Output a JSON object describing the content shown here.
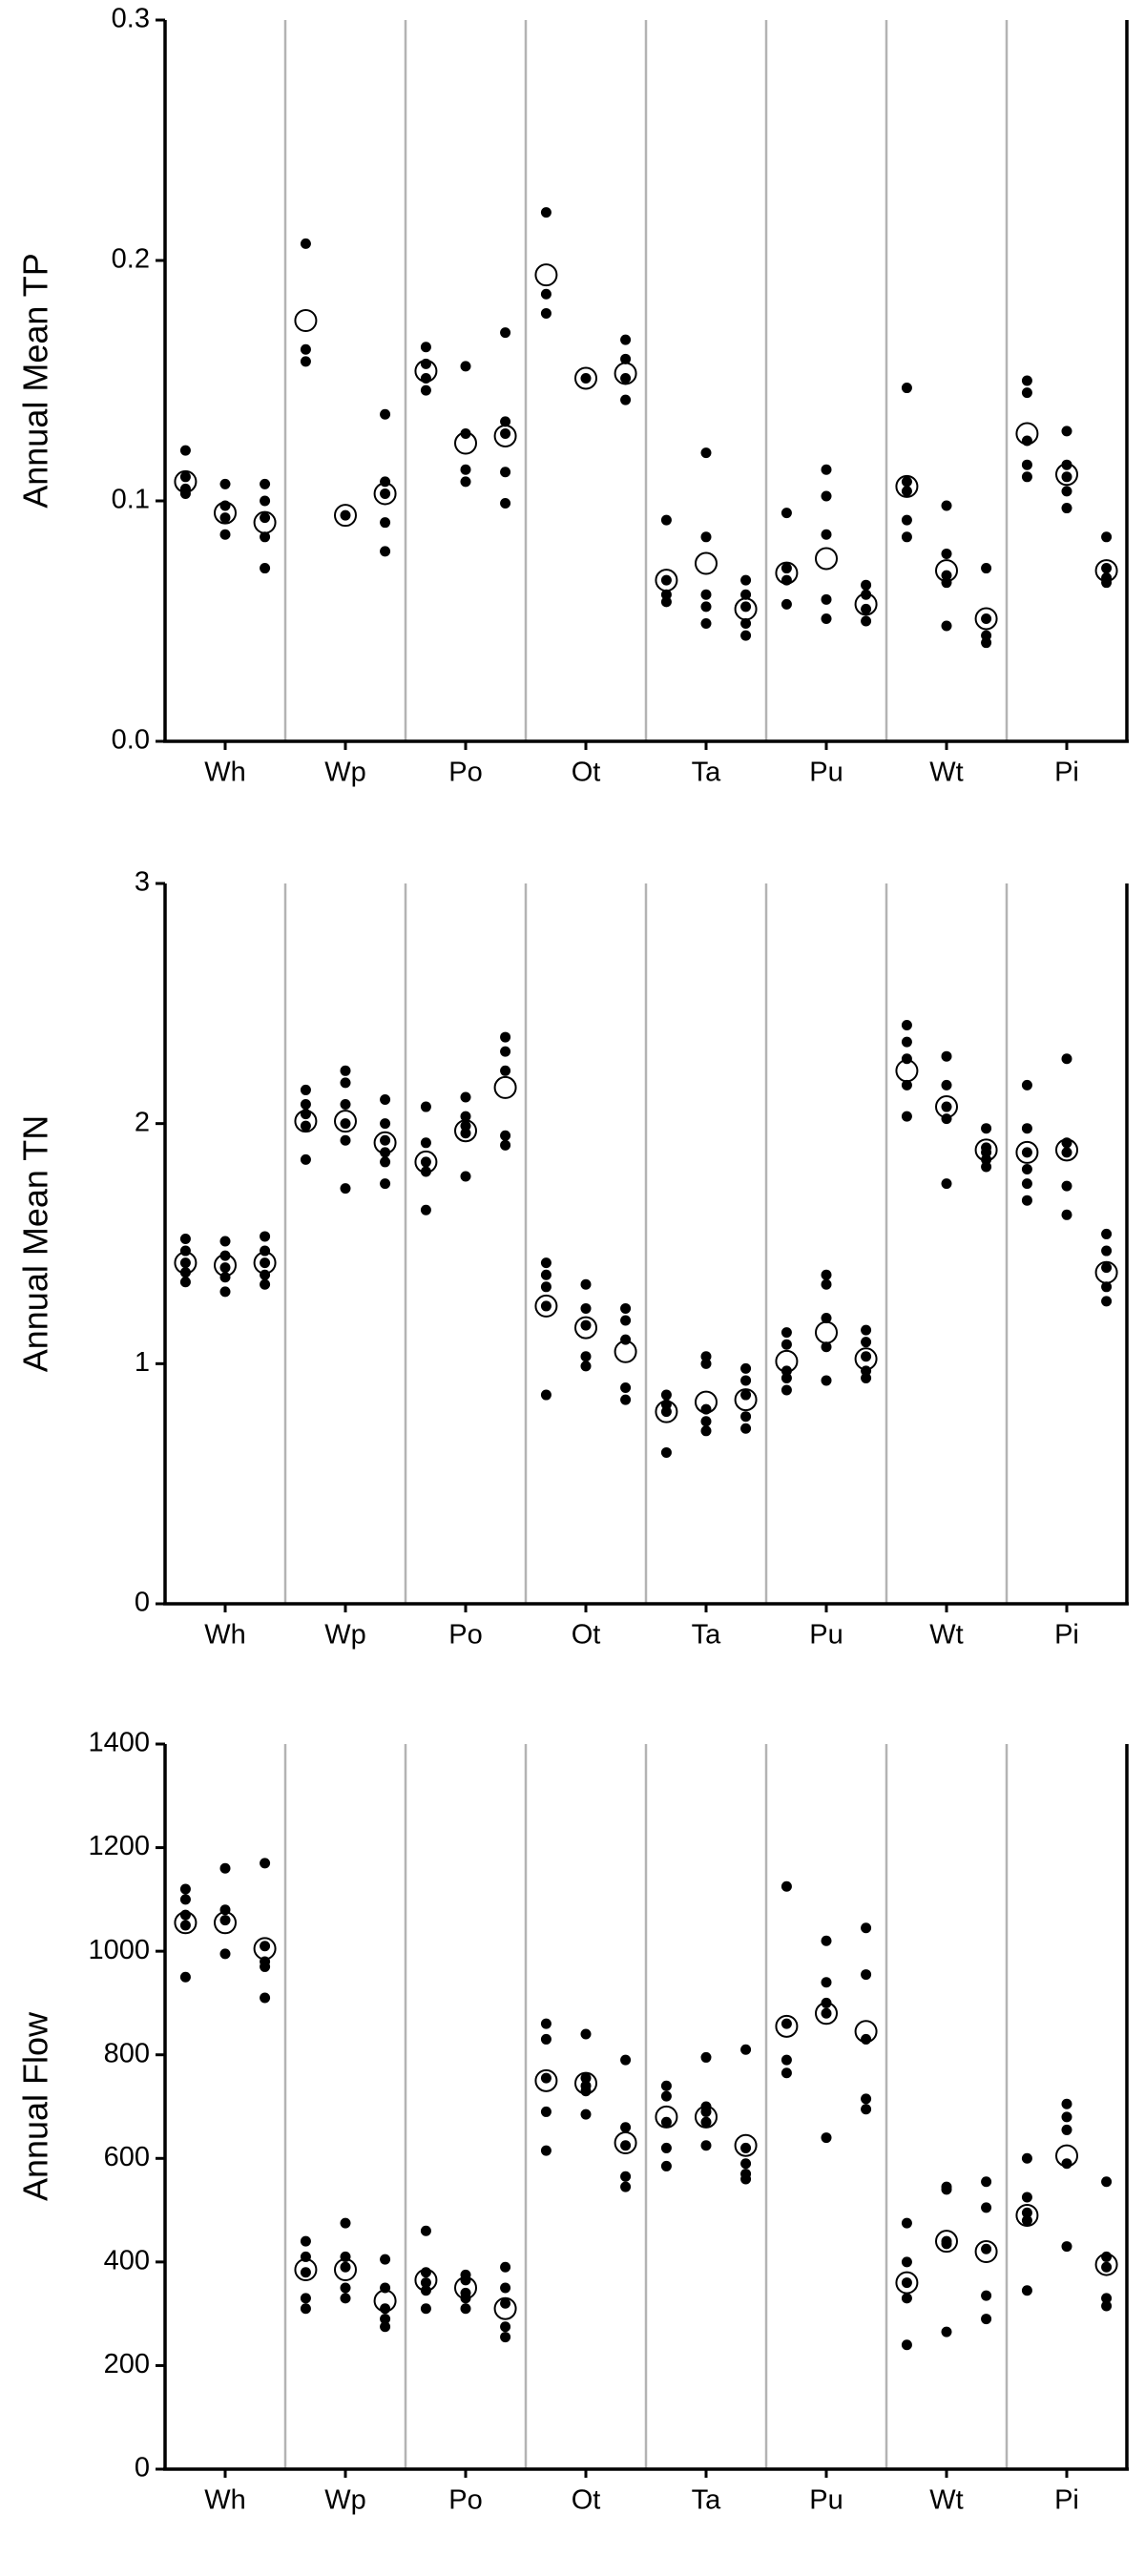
{
  "chart_data": [
    {
      "type": "strip",
      "ylabel": "Annual Mean TP",
      "categories": [
        "Wh",
        "Wp",
        "Po",
        "Ot",
        "Ta",
        "Pu",
        "Wt",
        "Pi"
      ],
      "ylim": [
        0,
        0.3
      ],
      "yticks": [
        {
          "value": 0,
          "label": "0.0"
        },
        0.1,
        0.2,
        0.3
      ],
      "groups": [
        [
          {
            "points": [
              0.121,
              0.11,
              0.105,
              0.103
            ],
            "mean": 0.108
          },
          {
            "points": [
              0.107,
              0.098,
              0.093,
              0.086
            ],
            "mean": 0.095
          },
          {
            "points": [
              0.107,
              0.1,
              0.093,
              0.085,
              0.072
            ],
            "mean": 0.091
          }
        ],
        [
          {
            "points": [
              0.207,
              0.163,
              0.158
            ],
            "mean": 0.175
          },
          {
            "points": [
              0.094
            ],
            "mean": 0.094
          },
          {
            "points": [
              0.136,
              0.108,
              0.103,
              0.091,
              0.079
            ],
            "mean": 0.103
          }
        ],
        [
          {
            "points": [
              0.164,
              0.157,
              0.151,
              0.146
            ],
            "mean": 0.154
          },
          {
            "points": [
              0.156,
              0.128,
              0.113,
              0.108
            ],
            "mean": 0.124
          },
          {
            "points": [
              0.17,
              0.133,
              0.128,
              0.112,
              0.099
            ],
            "mean": 0.127
          }
        ],
        [
          {
            "points": [
              0.22,
              0.186,
              0.178
            ],
            "mean": 0.194
          },
          {
            "points": [
              0.151
            ],
            "mean": 0.151
          },
          {
            "points": [
              0.167,
              0.159,
              0.151,
              0.142
            ],
            "mean": 0.153
          }
        ],
        [
          {
            "points": [
              0.092,
              0.067,
              0.061,
              0.058
            ],
            "mean": 0.067
          },
          {
            "points": [
              0.12,
              0.085,
              0.061,
              0.056,
              0.049
            ],
            "mean": 0.074
          },
          {
            "points": [
              0.067,
              0.061,
              0.056,
              0.049,
              0.044
            ],
            "mean": 0.055
          }
        ],
        [
          {
            "points": [
              0.095,
              0.072,
              0.067,
              0.057
            ],
            "mean": 0.07
          },
          {
            "points": [
              0.113,
              0.102,
              0.086,
              0.059,
              0.051
            ],
            "mean": 0.076
          },
          {
            "points": [
              0.065,
              0.061,
              0.055,
              0.05
            ],
            "mean": 0.057
          }
        ],
        [
          {
            "points": [
              0.147,
              0.108,
              0.104,
              0.092,
              0.085
            ],
            "mean": 0.106
          },
          {
            "points": [
              0.098,
              0.078,
              0.069,
              0.066,
              0.048
            ],
            "mean": 0.071
          },
          {
            "points": [
              0.072,
              0.051,
              0.044,
              0.041
            ],
            "mean": 0.051
          }
        ],
        [
          {
            "points": [
              0.15,
              0.145,
              0.125,
              0.115,
              0.11
            ],
            "mean": 0.128
          },
          {
            "points": [
              0.129,
              0.115,
              0.11,
              0.104,
              0.097
            ],
            "mean": 0.111
          },
          {
            "points": [
              0.085,
              0.072,
              0.068,
              0.066
            ],
            "mean": 0.071
          }
        ]
      ]
    },
    {
      "type": "strip",
      "ylabel": "Annual Mean TN",
      "categories": [
        "Wh",
        "Wp",
        "Po",
        "Ot",
        "Ta",
        "Pu",
        "Wt",
        "Pi"
      ],
      "ylim": [
        0,
        3
      ],
      "yticks": [
        0,
        1,
        2,
        3
      ],
      "groups": [
        [
          {
            "points": [
              1.52,
              1.47,
              1.42,
              1.38,
              1.34
            ],
            "mean": 1.42
          },
          {
            "points": [
              1.51,
              1.45,
              1.4,
              1.36,
              1.3
            ],
            "mean": 1.41
          },
          {
            "points": [
              1.53,
              1.47,
              1.42,
              1.37,
              1.33
            ],
            "mean": 1.42
          }
        ],
        [
          {
            "points": [
              2.14,
              2.08,
              2.04,
              1.99,
              1.85
            ],
            "mean": 2.01
          },
          {
            "points": [
              2.22,
              2.17,
              2.08,
              2.0,
              1.93,
              1.73
            ],
            "mean": 2.01
          },
          {
            "points": [
              2.1,
              2.0,
              1.93,
              1.88,
              1.84,
              1.75
            ],
            "mean": 1.92
          }
        ],
        [
          {
            "points": [
              2.07,
              1.92,
              1.84,
              1.8,
              1.64
            ],
            "mean": 1.84
          },
          {
            "points": [
              2.11,
              2.03,
              1.99,
              1.96,
              1.78
            ],
            "mean": 1.97
          },
          {
            "points": [
              2.36,
              2.3,
              2.22,
              1.95,
              1.91
            ],
            "mean": 2.15
          }
        ],
        [
          {
            "points": [
              1.42,
              1.37,
              1.32,
              1.24,
              0.87
            ],
            "mean": 1.24
          },
          {
            "points": [
              1.33,
              1.23,
              1.16,
              1.03,
              0.99
            ],
            "mean": 1.15
          },
          {
            "points": [
              1.23,
              1.18,
              1.1,
              0.9,
              0.85
            ],
            "mean": 1.05
          }
        ],
        [
          {
            "points": [
              0.87,
              0.83,
              0.8,
              0.63
            ],
            "mean": 0.8
          },
          {
            "points": [
              1.03,
              1.0,
              0.81,
              0.76,
              0.72
            ],
            "mean": 0.84
          },
          {
            "points": [
              0.98,
              0.93,
              0.87,
              0.78,
              0.73
            ],
            "mean": 0.85
          }
        ],
        [
          {
            "points": [
              1.13,
              1.08,
              0.97,
              0.94,
              0.89
            ],
            "mean": 1.01
          },
          {
            "points": [
              1.37,
              1.33,
              1.19,
              1.07,
              0.93
            ],
            "mean": 1.13
          },
          {
            "points": [
              1.14,
              1.09,
              1.03,
              0.97,
              0.94
            ],
            "mean": 1.02
          }
        ],
        [
          {
            "points": [
              2.41,
              2.34,
              2.27,
              2.16,
              2.03
            ],
            "mean": 2.22
          },
          {
            "points": [
              2.28,
              2.16,
              2.07,
              2.02,
              1.75
            ],
            "mean": 2.07
          },
          {
            "points": [
              1.98,
              1.9,
              1.88,
              1.85,
              1.82
            ],
            "mean": 1.89
          }
        ],
        [
          {
            "points": [
              2.16,
              1.98,
              1.88,
              1.81,
              1.75,
              1.68
            ],
            "mean": 1.88
          },
          {
            "points": [
              2.27,
              1.92,
              1.88,
              1.74,
              1.62
            ],
            "mean": 1.89
          },
          {
            "points": [
              1.54,
              1.47,
              1.4,
              1.32,
              1.26
            ],
            "mean": 1.38
          }
        ]
      ]
    },
    {
      "type": "strip",
      "ylabel": "Annual Flow",
      "categories": [
        "Wh",
        "Wp",
        "Po",
        "Ot",
        "Ta",
        "Pu",
        "Wt",
        "Pi"
      ],
      "ylim": [
        0,
        1400
      ],
      "yticks": [
        0,
        200,
        400,
        600,
        800,
        1000,
        1200,
        1400
      ],
      "groups": [
        [
          {
            "points": [
              1120,
              1100,
              1070,
              1050,
              950
            ],
            "mean": 1055
          },
          {
            "points": [
              1160,
              1080,
              1060,
              995
            ],
            "mean": 1055
          },
          {
            "points": [
              1170,
              1010,
              980,
              970,
              910
            ],
            "mean": 1005
          }
        ],
        [
          {
            "points": [
              440,
              410,
              380,
              330,
              310
            ],
            "mean": 385
          },
          {
            "points": [
              475,
              410,
              390,
              350,
              330
            ],
            "mean": 385
          },
          {
            "points": [
              405,
              350,
              310,
              290,
              275
            ],
            "mean": 325
          }
        ],
        [
          {
            "points": [
              460,
              380,
              360,
              345,
              310
            ],
            "mean": 365
          },
          {
            "points": [
              375,
              365,
              340,
              330,
              310
            ],
            "mean": 350
          },
          {
            "points": [
              390,
              350,
              320,
              275,
              255
            ],
            "mean": 310
          }
        ],
        [
          {
            "points": [
              860,
              830,
              755,
              690,
              615
            ],
            "mean": 750
          },
          {
            "points": [
              840,
              755,
              740,
              730,
              685
            ],
            "mean": 745
          },
          {
            "points": [
              790,
              660,
              625,
              565,
              545
            ],
            "mean": 630
          }
        ],
        [
          {
            "points": [
              740,
              720,
              670,
              620,
              585
            ],
            "mean": 680
          },
          {
            "points": [
              795,
              700,
              690,
              670,
              625
            ],
            "mean": 680
          },
          {
            "points": [
              810,
              620,
              590,
              570,
              560
            ],
            "mean": 625
          }
        ],
        [
          {
            "points": [
              1125,
              860,
              790,
              765
            ],
            "mean": 855
          },
          {
            "points": [
              1020,
              940,
              900,
              880,
              640
            ],
            "mean": 880
          },
          {
            "points": [
              1045,
              955,
              830,
              715,
              695
            ],
            "mean": 845
          }
        ],
        [
          {
            "points": [
              475,
              400,
              360,
              330,
              240
            ],
            "mean": 360
          },
          {
            "points": [
              545,
              540,
              440,
              435,
              265
            ],
            "mean": 440
          },
          {
            "points": [
              555,
              505,
              425,
              335,
              290
            ],
            "mean": 420
          }
        ],
        [
          {
            "points": [
              600,
              525,
              495,
              480,
              345
            ],
            "mean": 490
          },
          {
            "points": [
              705,
              680,
              655,
              590,
              430
            ],
            "mean": 605
          },
          {
            "points": [
              555,
              410,
              390,
              330,
              315
            ],
            "mean": 395
          }
        ]
      ]
    }
  ]
}
